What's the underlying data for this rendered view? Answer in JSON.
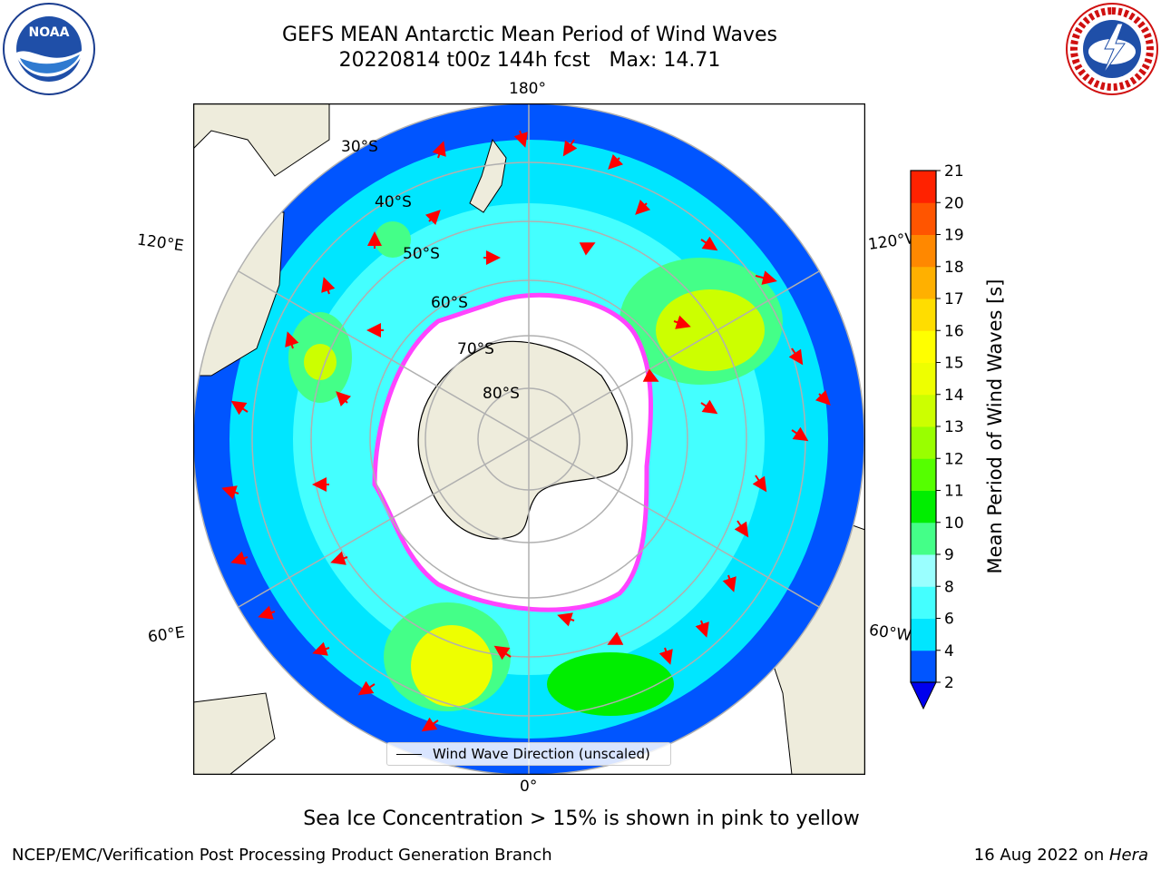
{
  "title": {
    "line1": "GEFS MEAN Antarctic Mean Period of Wind Waves",
    "line2": "20220814 t00z 144h fcst   Max: 14.71"
  },
  "logos": {
    "left": {
      "text": "NOAA",
      "ring_text": "NATIONAL OCEANIC AND ATMOSPHERIC ADMINISTRATION · U.S. DEPARTMENT OF COMMERCE",
      "icon": "noaa-seal-icon"
    },
    "right": {
      "ring_text": "NATIONAL WEATHER SERVICE",
      "icon": "nws-seal-icon"
    }
  },
  "map": {
    "projection": "south-polar-stereographic",
    "longitude_labels": {
      "top": "180°",
      "bottom": "0°",
      "upper_left": "120°E",
      "upper_right": "120°W",
      "lower_left": "60°E",
      "lower_right": "60°W"
    },
    "latitude_labels": [
      "30°S",
      "40°S",
      "50°S",
      "60°S",
      "70°S",
      "80°S"
    ],
    "legend": "Wind Wave Direction (unscaled)",
    "colors": {
      "land": "#eeecdc",
      "ice": "#ffffff",
      "arrows": "#ff0000",
      "grid": "#b0b0b0"
    }
  },
  "colorbar": {
    "title": "Mean Period of Wind Waves [s]",
    "ticks": [
      "2",
      "4",
      "6",
      "8",
      "9",
      "10",
      "11",
      "12",
      "13",
      "14",
      "15",
      "16",
      "17",
      "18",
      "19",
      "20",
      "21"
    ],
    "colors": [
      "#0055ff",
      "#00e6ff",
      "#44ffff",
      "#9affff",
      "#44ff88",
      "#00ee00",
      "#55ff00",
      "#99ff00",
      "#ccff00",
      "#eeff00",
      "#ffff00",
      "#ffdd00",
      "#ffb000",
      "#ff8800",
      "#ff5500",
      "#ff2200"
    ],
    "under_color": "#0000ee"
  },
  "note": "Sea Ice Concentration > 15% is shown in pink to yellow",
  "footer": {
    "left": "NCEP/EMC/Verification Post Processing Product Generation Branch",
    "right_prefix": "16 Aug 2022 on ",
    "right_machine": "Hera"
  }
}
